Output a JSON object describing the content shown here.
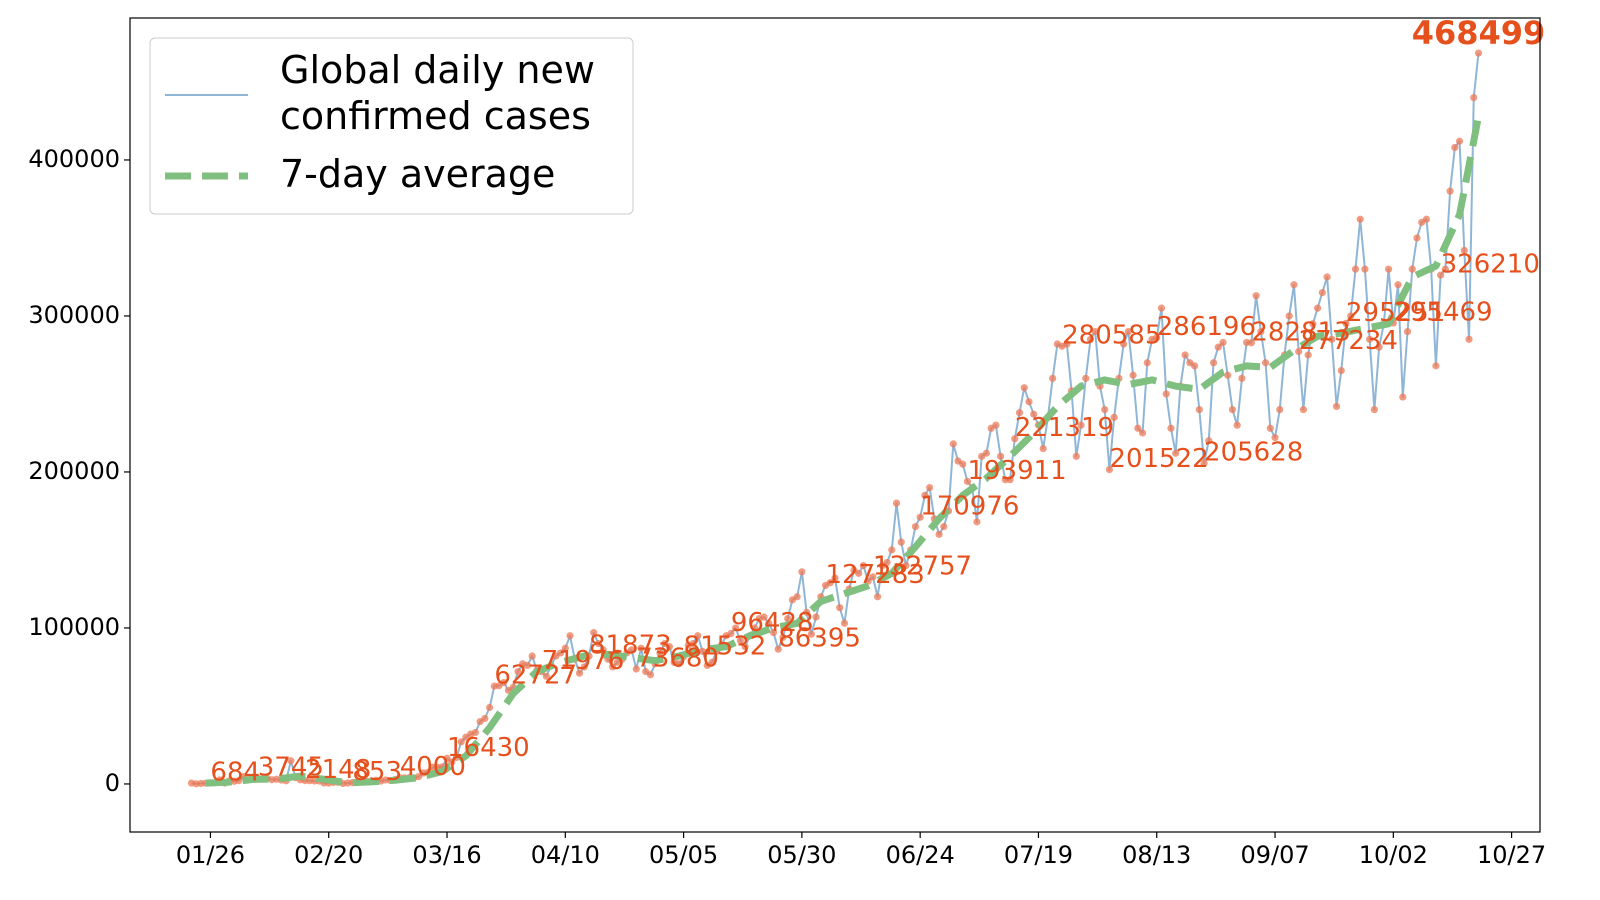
{
  "chart_data": {
    "type": "line",
    "x": [
      "01/22",
      "01/23",
      "01/24",
      "01/25",
      "01/26",
      "01/27",
      "01/28",
      "01/29",
      "01/30",
      "01/31",
      "02/01",
      "02/02",
      "02/03",
      "02/04",
      "02/05",
      "02/06",
      "02/07",
      "02/08",
      "02/09",
      "02/10",
      "02/11",
      "02/12",
      "02/13",
      "02/14",
      "02/15",
      "02/16",
      "02/17",
      "02/18",
      "02/19",
      "02/20",
      "02/21",
      "02/22",
      "02/23",
      "02/24",
      "02/25",
      "02/26",
      "02/27",
      "02/28",
      "02/29",
      "03/01",
      "03/02",
      "03/03",
      "03/04",
      "03/05",
      "03/06",
      "03/07",
      "03/08",
      "03/09",
      "03/10",
      "03/11",
      "03/12",
      "03/13",
      "03/14",
      "03/15",
      "03/16",
      "03/17",
      "03/18",
      "03/19",
      "03/20",
      "03/21",
      "03/22",
      "03/23",
      "03/24",
      "03/25",
      "03/26",
      "03/27",
      "03/28",
      "03/29",
      "03/30",
      "03/31",
      "04/01",
      "04/02",
      "04/03",
      "04/04",
      "04/05",
      "04/06",
      "04/07",
      "04/08",
      "04/09",
      "04/10",
      "04/11",
      "04/12",
      "04/13",
      "04/14",
      "04/15",
      "04/16",
      "04/17",
      "04/18",
      "04/19",
      "04/20",
      "04/21",
      "04/22",
      "04/23",
      "04/24",
      "04/25",
      "04/26",
      "04/27",
      "04/28",
      "04/29",
      "04/30",
      "05/01",
      "05/02",
      "05/03",
      "05/04",
      "05/05",
      "05/06",
      "05/07",
      "05/08",
      "05/09",
      "05/10",
      "05/11",
      "05/12",
      "05/13",
      "05/14",
      "05/15",
      "05/16",
      "05/17",
      "05/18",
      "05/19",
      "05/20",
      "05/21",
      "05/22",
      "05/23",
      "05/24",
      "05/25",
      "05/26",
      "05/27",
      "05/28",
      "05/29",
      "05/30",
      "05/31",
      "06/01",
      "06/02",
      "06/03",
      "06/04",
      "06/05",
      "06/06",
      "06/07",
      "06/08",
      "06/09",
      "06/10",
      "06/11",
      "06/12",
      "06/13",
      "06/14",
      "06/15",
      "06/16",
      "06/17",
      "06/18",
      "06/19",
      "06/20",
      "06/21",
      "06/22",
      "06/23",
      "06/24",
      "06/25",
      "06/26",
      "06/27",
      "06/28",
      "06/29",
      "06/30",
      "07/01",
      "07/02",
      "07/03",
      "07/04",
      "07/05",
      "07/06",
      "07/07",
      "07/08",
      "07/09",
      "07/10",
      "07/11",
      "07/12",
      "07/13",
      "07/14",
      "07/15",
      "07/16",
      "07/17",
      "07/18",
      "07/19",
      "07/20",
      "07/21",
      "07/22",
      "07/23",
      "07/24",
      "07/25",
      "07/26",
      "07/27",
      "07/28",
      "07/29",
      "07/30",
      "07/31",
      "08/01",
      "08/02",
      "08/03",
      "08/04",
      "08/05",
      "08/06",
      "08/07",
      "08/08",
      "08/09",
      "08/10",
      "08/11",
      "08/12",
      "08/13",
      "08/14",
      "08/15",
      "08/16",
      "08/17",
      "08/18",
      "08/19",
      "08/20",
      "08/21",
      "08/22",
      "08/23",
      "08/24",
      "08/25",
      "08/26",
      "08/27",
      "08/28",
      "08/29",
      "08/30",
      "08/31",
      "09/01",
      "09/02",
      "09/03",
      "09/04",
      "09/05",
      "09/06",
      "09/07",
      "09/08",
      "09/09",
      "09/10",
      "09/11",
      "09/12",
      "09/13",
      "09/14",
      "09/15",
      "09/16",
      "09/17",
      "09/18",
      "09/19",
      "09/20",
      "09/21",
      "09/22",
      "09/23",
      "09/24",
      "09/25",
      "09/26",
      "09/27",
      "09/28",
      "09/29",
      "09/30",
      "10/01",
      "10/02",
      "10/03",
      "10/04",
      "10/05",
      "10/06",
      "10/07",
      "10/08",
      "10/09",
      "10/10",
      "10/11",
      "10/12",
      "10/13",
      "10/14",
      "10/15",
      "10/16",
      "10/17",
      "10/18",
      "10/19",
      "10/20"
    ],
    "series": [
      {
        "name": "Global daily new\nconfirmed cases",
        "color": "#8fb6d6",
        "marker_color": "#ee7a55",
        "values": [
          555,
          99,
          287,
          493,
          684,
          809,
          2651,
          588,
          2068,
          1693,
          2111,
          4749,
          3094,
          4011,
          3745,
          3160,
          3594,
          2729,
          3031,
          2494,
          2026,
          14881,
          4042,
          2681,
          2148,
          2103,
          1909,
          1848,
          615,
          573,
          999,
          1001,
          294,
          587,
          853,
          987,
          1348,
          1849,
          1896,
          2385,
          1858,
          2530,
          2263,
          2813,
          4000,
          3950,
          4060,
          3930,
          4700,
          7000,
          7500,
          10700,
          10700,
          11000,
          16430,
          14000,
          17000,
          27000,
          30000,
          32000,
          33000,
          40000,
          42000,
          49000,
          62727,
          63000,
          65000,
          60000,
          62000,
          72000,
          77000,
          76000,
          82000,
          73000,
          71976,
          69000,
          76000,
          82000,
          84000,
          87000,
          95000,
          80000,
          71000,
          75000,
          81873,
          97000,
          90000,
          86000,
          80000,
          75000,
          78000,
          80000,
          84000,
          86000,
          73680,
          87000,
          72000,
          70000,
          77000,
          84000,
          90000,
          88000,
          78000,
          77000,
          81532,
          89000,
          90000,
          95000,
          85000,
          76000,
          78000,
          85000,
          89000,
          95000,
          96428,
          100000,
          92000,
          88000,
          95000,
          100000,
          106000,
          107000,
          103000,
          97000,
          86395,
          94000,
          106000,
          118000,
          120000,
          136000,
          110000,
          96000,
          107000,
          120000,
          127283,
          129000,
          132000,
          113000,
          103000,
          125000,
          137000,
          135000,
          140000,
          130000,
          132757,
          120000,
          140000,
          142000,
          150000,
          180000,
          155000,
          140000,
          150000,
          165000,
          170976,
          185000,
          190000,
          170000,
          160000,
          165000,
          175000,
          218000,
          207000,
          205000,
          193911,
          190000,
          168000,
          210000,
          212000,
          228000,
          230000,
          210000,
          195000,
          195000,
          221319,
          238000,
          254000,
          245000,
          237000,
          230000,
          215000,
          235000,
          260000,
          282000,
          280585,
          282000,
          252000,
          210000,
          230000,
          260000,
          285000,
          290000,
          255000,
          240000,
          201522,
          235000,
          260000,
          282000,
          290000,
          262000,
          228000,
          225000,
          270000,
          285000,
          286196,
          305000,
          250000,
          228000,
          212000,
          255000,
          275000,
          270000,
          268000,
          240000,
          205628,
          220000,
          270000,
          280000,
          283000,
          262000,
          240000,
          230000,
          260000,
          283000,
          282813,
          313000,
          290000,
          270000,
          228000,
          222000,
          240000,
          275000,
          300000,
          320000,
          277234,
          240000,
          275000,
          295000,
          305000,
          315000,
          325000,
          285000,
          242000,
          265000,
          295251,
          300000,
          330000,
          362000,
          330000,
          285000,
          240000,
          280000,
          295000,
          330000,
          295469,
          320000,
          248000,
          290000,
          330000,
          350000,
          360000,
          362000,
          330000,
          268000,
          326210,
          330000,
          380000,
          408000,
          412000,
          342000,
          285000,
          440000,
          468499
        ]
      },
      {
        "name": "7-day average",
        "color": "#7fbf7f",
        "dashed": true,
        "x": [
          "01/25",
          "01/30",
          "02/04",
          "02/09",
          "02/14",
          "02/19",
          "02/24",
          "02/29",
          "03/05",
          "03/10",
          "03/15",
          "03/20",
          "03/25",
          "03/30",
          "04/04",
          "04/09",
          "04/14",
          "04/19",
          "04/24",
          "04/29",
          "05/04",
          "05/09",
          "05/14",
          "05/19",
          "05/24",
          "05/29",
          "06/03",
          "06/08",
          "06/13",
          "06/18",
          "06/23",
          "06/28",
          "07/03",
          "07/08",
          "07/13",
          "07/18",
          "07/23",
          "07/28",
          "08/02",
          "08/07",
          "08/12",
          "08/17",
          "08/22",
          "08/27",
          "09/01",
          "09/06",
          "09/11",
          "09/16",
          "09/21",
          "09/26",
          "10/01",
          "10/06",
          "10/11",
          "10/16",
          "10/20"
        ],
        "values": [
          500,
          1200,
          2900,
          3200,
          5000,
          3000,
          700,
          1300,
          2400,
          4000,
          8000,
          18000,
          36000,
          58000,
          72000,
          78000,
          82000,
          83000,
          81000,
          79000,
          82000,
          86000,
          88000,
          95000,
          100000,
          103000,
          117000,
          122000,
          127000,
          135000,
          152000,
          170000,
          185000,
          196000,
          210000,
          225000,
          242000,
          255000,
          259000,
          256000,
          259000,
          255000,
          253000,
          264000,
          268000,
          267000,
          278000,
          287000,
          289000,
          292000,
          295000,
          325000,
          332000,
          365000,
          428000
        ]
      }
    ],
    "annotations": [
      {
        "x": "01/26",
        "value": 684
      },
      {
        "x": "02/05",
        "value": 3745
      },
      {
        "x": "02/15",
        "value": 2148
      },
      {
        "x": "02/25",
        "value": 853
      },
      {
        "x": "03/06",
        "value": 4000
      },
      {
        "x": "03/16",
        "value": 16430
      },
      {
        "x": "03/26",
        "value": 62727
      },
      {
        "x": "04/05",
        "value": 71976
      },
      {
        "x": "04/15",
        "value": 81873
      },
      {
        "x": "04/25",
        "value": 73680
      },
      {
        "x": "05/05",
        "value": 81532
      },
      {
        "x": "05/15",
        "value": 96428
      },
      {
        "x": "05/25",
        "value": 86395
      },
      {
        "x": "06/04",
        "value": 127283
      },
      {
        "x": "06/14",
        "value": 132757
      },
      {
        "x": "06/24",
        "value": 170976
      },
      {
        "x": "07/04",
        "value": 193911
      },
      {
        "x": "07/14",
        "value": 221319
      },
      {
        "x": "07/24",
        "value": 280585
      },
      {
        "x": "08/03",
        "value": 201522
      },
      {
        "x": "08/13",
        "value": 286196
      },
      {
        "x": "08/23",
        "value": 205628
      },
      {
        "x": "09/02",
        "value": 282813
      },
      {
        "x": "09/12",
        "value": 277234
      },
      {
        "x": "09/22",
        "value": 295251
      },
      {
        "x": "10/02",
        "value": 295469
      },
      {
        "x": "10/12",
        "value": 326210
      }
    ],
    "max_annotation": {
      "x": "10/20",
      "value": 468499
    },
    "annotation_color": "#e5501c",
    "xlim": [
      "01/09",
      "11/02"
    ],
    "xticks": [
      "01/26",
      "02/20",
      "03/16",
      "04/10",
      "05/05",
      "05/30",
      "06/24",
      "07/19",
      "08/13",
      "09/07",
      "10/02",
      "10/27"
    ],
    "ylim": [
      -30800,
      491000
    ],
    "yticks": [
      0,
      100000,
      200000,
      300000,
      400000
    ],
    "grid": false,
    "legend": "upper left"
  }
}
